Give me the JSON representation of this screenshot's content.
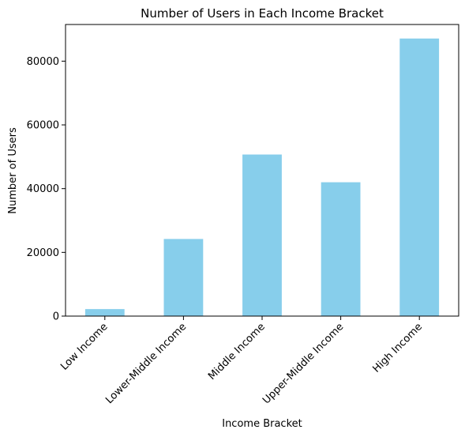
{
  "chart_data": {
    "type": "bar",
    "title": "Number of Users in Each Income Bracket",
    "xlabel": "Income Bracket",
    "ylabel": "Number of Users",
    "categories": [
      "Low Income",
      "Lower-Middle Income",
      "Middle Income",
      "Upper-Middle Income",
      "High Income"
    ],
    "values": [
      2200,
      24200,
      50700,
      42000,
      87100
    ],
    "ylim": [
      0,
      91500
    ],
    "yticks": [
      0,
      20000,
      40000,
      60000,
      80000
    ],
    "bar_color": "#87ceeb",
    "grid": false,
    "legend": "none"
  }
}
